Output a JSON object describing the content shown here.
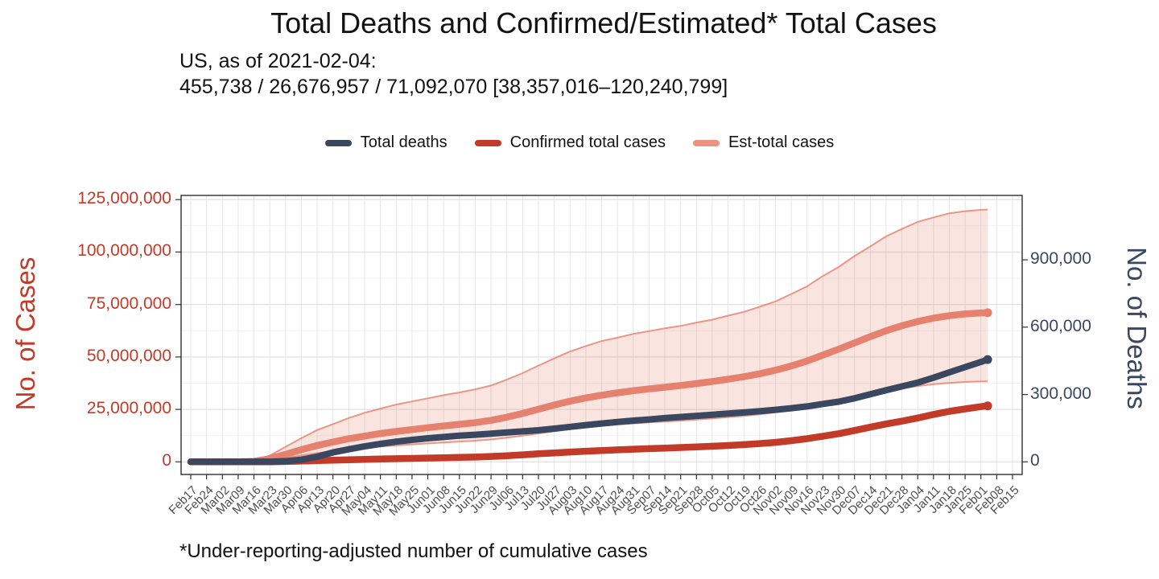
{
  "title": "Total Deaths and Confirmed/Estimated* Total Cases",
  "subtitle": {
    "line1": "US, as of 2021-02-04:",
    "line2": "455,738 / 26,676,957 / 71,092,070 [38,357,016–120,240,799]"
  },
  "footnote": "*Under-reporting-adjusted number of cumulative cases",
  "legend": {
    "items": [
      {
        "label": "Total deaths",
        "color": "#3a4761"
      },
      {
        "label": "Confirmed total cases",
        "color": "#c23a28"
      },
      {
        "label": "Est-total cases",
        "color": "#ee9181"
      }
    ]
  },
  "axes": {
    "left": {
      "title": "No. of Cases",
      "color": "#c23a28",
      "tick_labels": [
        "0",
        "25,000,000",
        "50,000,000",
        "75,000,000",
        "100,000,000",
        "125,000,000"
      ],
      "tick_values": [
        0,
        25000000,
        50000000,
        75000000,
        100000000,
        125000000
      ]
    },
    "right": {
      "title": "No. of Deaths",
      "color": "#3a4761",
      "tick_labels": [
        "0",
        "300,000",
        "600,000",
        "900,000"
      ],
      "tick_values": [
        0,
        300000,
        600000,
        900000
      ]
    }
  },
  "chart_data": {
    "type": "line",
    "title": "Total Deaths and Confirmed/Estimated* Total Cases",
    "as_of": {
      "date": "2021-02-04",
      "total_deaths": 455738,
      "confirmed_total_cases": 26676957,
      "est_total_cases": 71092070,
      "est_total_cases_range": [
        38357016,
        120240799
      ]
    },
    "x": [
      "Feb17",
      "Feb24",
      "Mar02",
      "Mar09",
      "Mar16",
      "Mar23",
      "Mar30",
      "Apr06",
      "Apr13",
      "Apr20",
      "Apr27",
      "May04",
      "May11",
      "May18",
      "May25",
      "Jun01",
      "Jun08",
      "Jun15",
      "Jun22",
      "Jun29",
      "Jul06",
      "Jul13",
      "Jul20",
      "Jul27",
      "Aug03",
      "Aug10",
      "Aug17",
      "Aug24",
      "Aug31",
      "Sep07",
      "Sep14",
      "Sep21",
      "Sep28",
      "Oct05",
      "Oct12",
      "Oct19",
      "Oct26",
      "Nov02",
      "Nov09",
      "Nov16",
      "Nov23",
      "Nov30",
      "Dec07",
      "Dec14",
      "Dec21",
      "Dec28",
      "Jan04",
      "Jan11",
      "Jan18",
      "Jan25",
      "Feb01",
      "Feb08",
      "Feb15"
    ],
    "left_ylim": [
      0,
      125000000
    ],
    "right_axis": {
      "ticks": [
        0,
        300000,
        600000,
        900000
      ],
      "cases_per_death_scale": 107
    },
    "series": [
      {
        "name": "Total deaths",
        "axis": "right",
        "color": "#3a4761",
        "weekly_values": [
          0,
          0,
          10,
          30,
          100,
          600,
          3000,
          10000,
          23000,
          42000,
          56000,
          69000,
          80000,
          90000,
          98000,
          105000,
          111000,
          117000,
          121000,
          126000,
          131000,
          136000,
          141000,
          148000,
          156000,
          164000,
          171000,
          178000,
          184000,
          189000,
          195000,
          200000,
          205000,
          210000,
          215000,
          220000,
          226000,
          232000,
          239000,
          247000,
          258000,
          268000,
          283000,
          301000,
          319000,
          336000,
          353000,
          375000,
          399000,
          422000,
          445000
        ],
        "final_value": 455738
      },
      {
        "name": "Confirmed total cases",
        "axis": "left",
        "color": "#c23a28",
        "weekly_values": [
          15,
          35,
          100,
          600,
          4500,
          44000,
          164000,
          368000,
          582000,
          784000,
          988000,
          1180000,
          1347000,
          1508000,
          1662000,
          1811000,
          1956000,
          2114000,
          2289000,
          2573000,
          2936000,
          3364000,
          3834000,
          4290000,
          4700000,
          5090000,
          5440000,
          5740000,
          6030000,
          6300000,
          6550000,
          6830000,
          7130000,
          7440000,
          7790000,
          8210000,
          8700000,
          9300000,
          10110000,
          11050000,
          12240000,
          13450000,
          14950000,
          16520000,
          18080000,
          19430000,
          20900000,
          22600000,
          24100000,
          25250000,
          26300000
        ],
        "final_value": 26676957
      },
      {
        "name": "Est-total cases",
        "axis": "left",
        "color": "#e5816e",
        "weekly_values": [
          0,
          100,
          2000,
          30000,
          250000,
          1500000,
          3600000,
          5800000,
          7800000,
          9500000,
          11000000,
          12300000,
          13500000,
          14500000,
          15400000,
          16300000,
          17100000,
          17900000,
          18700000,
          19800000,
          21300000,
          23100000,
          25100000,
          27100000,
          28900000,
          30500000,
          31800000,
          32900000,
          33900000,
          34800000,
          35600000,
          36400000,
          37300000,
          38300000,
          39400000,
          40600000,
          42000000,
          43700000,
          45700000,
          48100000,
          50900000,
          53700000,
          56700000,
          59700000,
          62500000,
          64900000,
          66900000,
          68500000,
          69700000,
          70500000,
          71000000
        ],
        "final_value": 71092070
      },
      {
        "name": "Est-total cases upper bound",
        "axis": "left",
        "color": "#efa success",
        "weekly_values": [
          0,
          200,
          4000,
          60000,
          500000,
          3000000,
          7200000,
          11300000,
          15200000,
          18000000,
          20900000,
          23400000,
          25400000,
          27300000,
          28800000,
          30300000,
          31800000,
          33100000,
          34600000,
          36400000,
          39200000,
          42300000,
          45900000,
          49300000,
          52600000,
          55200000,
          57600000,
          59200000,
          61000000,
          62300000,
          63700000,
          64800000,
          66400000,
          67800000,
          69700000,
          71500000,
          73900000,
          76500000,
          80000000,
          83700000,
          88600000,
          92900000,
          98100000,
          102700000,
          107500000,
          111000000,
          114400000,
          116500000,
          118500000,
          119500000,
          120100000
        ],
        "final_value": 120240799
      },
      {
        "name": "Est-total cases lower bound",
        "axis": "left",
        "color": "#efb0a3",
        "weekly_values": [
          0,
          50,
          1000,
          16000,
          135000,
          800000,
          1940000,
          3130000,
          4210000,
          5130000,
          5940000,
          6640000,
          7290000,
          7830000,
          8320000,
          8800000,
          9230000,
          9670000,
          10100000,
          10690000,
          11500000,
          12470000,
          13550000,
          14630000,
          15610000,
          16470000,
          17170000,
          17770000,
          18310000,
          18790000,
          19220000,
          19660000,
          20140000,
          20680000,
          21280000,
          21920000,
          22680000,
          23600000,
          24680000,
          25970000,
          27490000,
          29000000,
          30620000,
          32240000,
          33750000,
          35050000,
          36130000,
          36990000,
          37640000,
          38070000,
          38340000
        ],
        "final_value": 38357016
      }
    ]
  }
}
